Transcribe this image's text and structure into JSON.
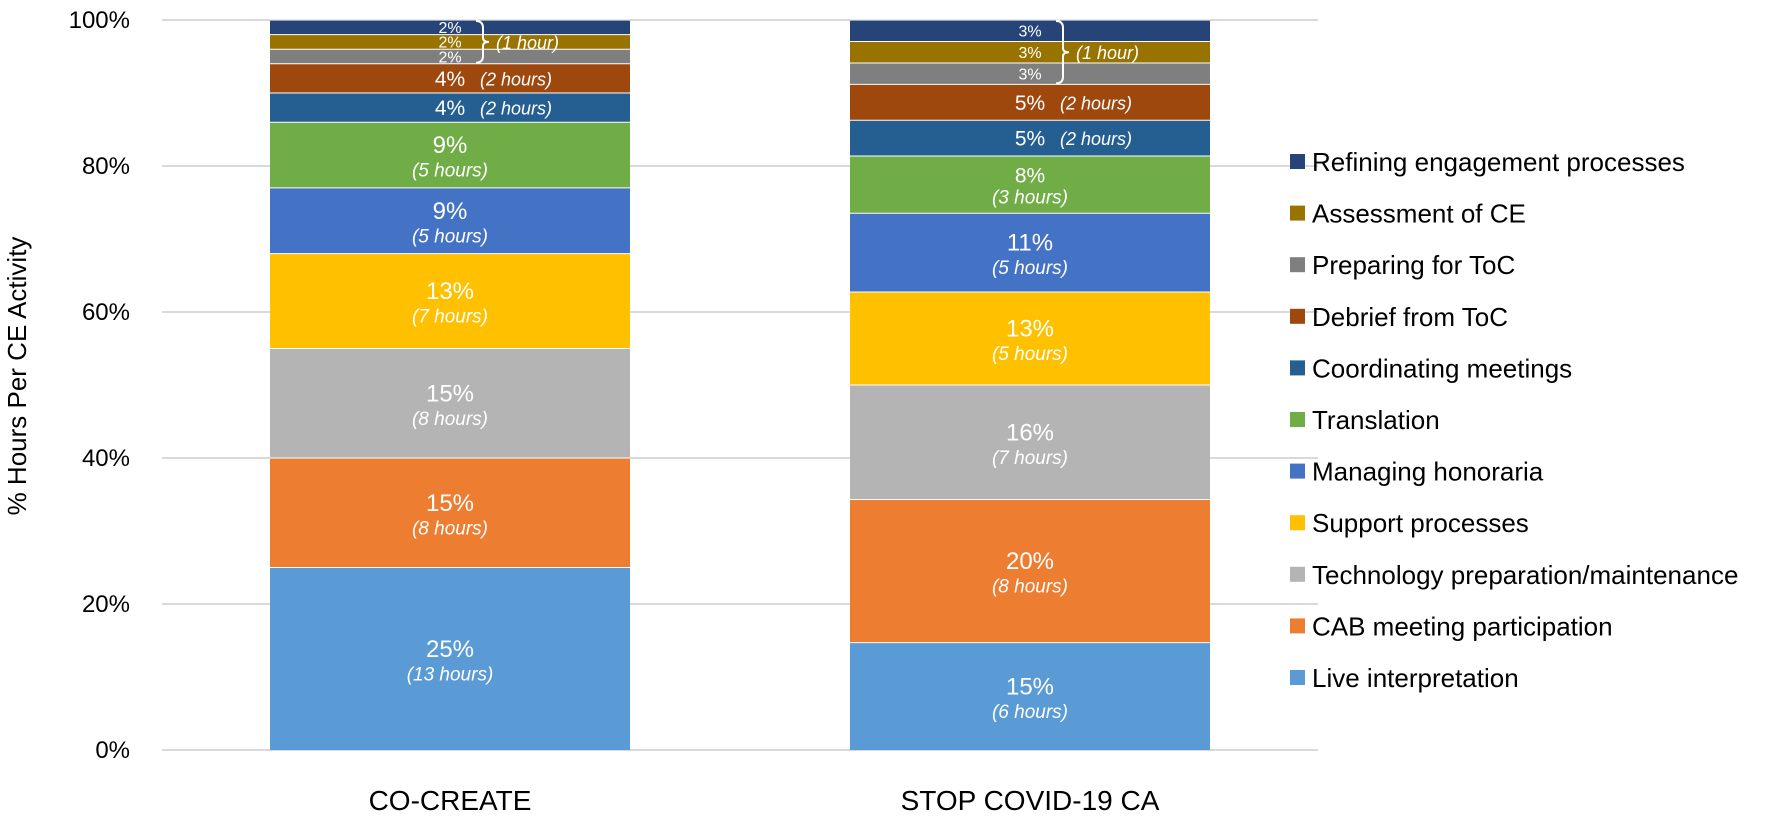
{
  "chart_data": {
    "type": "bar",
    "stacked": true,
    "ylabel": "% Hours Per CE Activity",
    "xlabel": "",
    "ylim": [
      0,
      100
    ],
    "yticks": [
      0,
      20,
      40,
      60,
      80,
      100
    ],
    "ytick_labels": [
      "0%",
      "20%",
      "40%",
      "60%",
      "80%",
      "100%"
    ],
    "grid": true,
    "legend_position": "right",
    "categories": [
      "CO-CREATE",
      "STOP COVID-19 CA"
    ],
    "series": [
      {
        "name": "Live interpretation",
        "color": "#5B9BD5",
        "values": [
          25,
          15
        ],
        "labels": [
          "25%",
          "15%"
        ],
        "hours": [
          "(13 hours)",
          "(6 hours)"
        ]
      },
      {
        "name": "CAB meeting participation",
        "color": "#ED7D31",
        "values": [
          15,
          20
        ],
        "labels": [
          "15%",
          "20%"
        ],
        "hours": [
          "(8 hours)",
          "(8 hours)"
        ]
      },
      {
        "name": "Technology preparation/maintenance",
        "color": "#B4B4B4",
        "values": [
          15,
          16
        ],
        "labels": [
          "15%",
          "16%"
        ],
        "hours": [
          "(8 hours)",
          "(7 hours)"
        ]
      },
      {
        "name": "Support processes",
        "color": "#FFC000",
        "values": [
          13,
          13
        ],
        "labels": [
          "13%",
          "13%"
        ],
        "hours": [
          "(7 hours)",
          "(5 hours)"
        ]
      },
      {
        "name": "Managing honoraria",
        "color": "#4472C4",
        "values": [
          9,
          11
        ],
        "labels": [
          "9%",
          "11%"
        ],
        "hours": [
          "(5 hours)",
          "(5 hours)"
        ]
      },
      {
        "name": "Translation",
        "color": "#70AD47",
        "values": [
          9,
          8
        ],
        "labels": [
          "9%",
          "8%"
        ],
        "hours": [
          "(5 hours)",
          "(3 hours)"
        ]
      },
      {
        "name": "Coordinating meetings",
        "color": "#255E91",
        "values": [
          4,
          5
        ],
        "labels": [
          "4%",
          "5%"
        ],
        "hours": [
          "(2 hours)",
          "(2 hours)"
        ]
      },
      {
        "name": "Debrief from ToC",
        "color": "#9E480E",
        "values": [
          4,
          5
        ],
        "labels": [
          "4%",
          "5%"
        ],
        "hours": [
          "(2 hours)",
          "(2 hours)"
        ]
      },
      {
        "name": "Preparing for ToC",
        "color": "#7F7F7F",
        "values": [
          2,
          3
        ],
        "labels": [
          "2%",
          "3%"
        ],
        "hours": [
          "",
          ""
        ]
      },
      {
        "name": "Assessment of CE",
        "color": "#997300",
        "values": [
          2,
          3
        ],
        "labels": [
          "2%",
          "3%"
        ],
        "hours": [
          "",
          ""
        ]
      },
      {
        "name": "Refining engagement processes",
        "color": "#264478",
        "values": [
          2,
          3
        ],
        "labels": [
          "2%",
          "3%"
        ],
        "hours": [
          "",
          ""
        ]
      }
    ],
    "group_annotations": [
      "(1 hour)",
      "(1 hour)"
    ]
  }
}
